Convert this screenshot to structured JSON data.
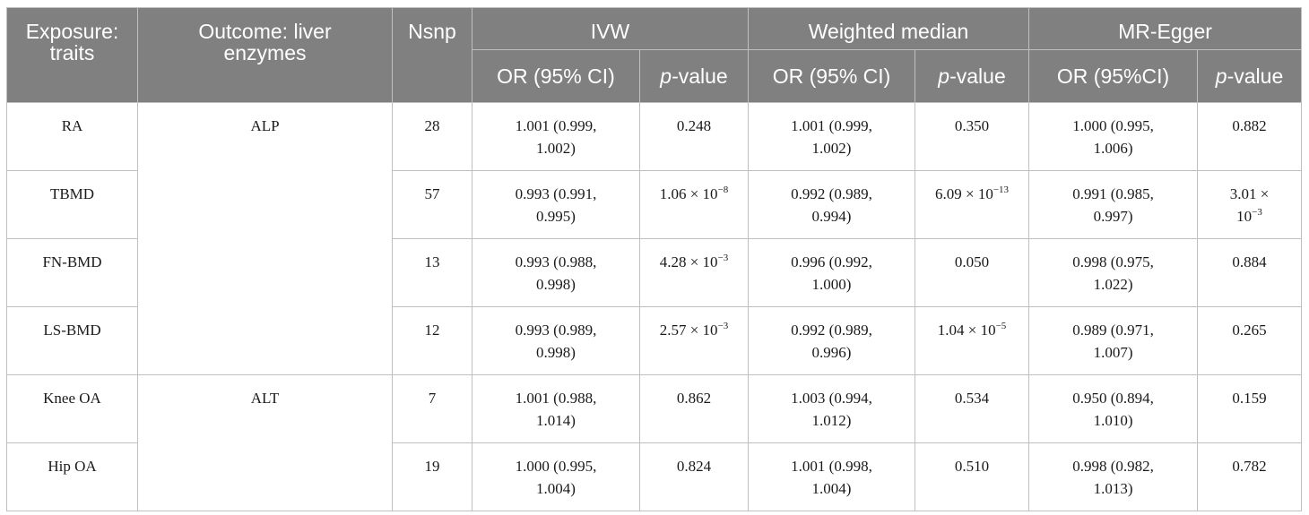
{
  "headers": {
    "exposure": "Exposure: traits",
    "outcome": "Outcome: liver enzymes",
    "nsnp": "Nsnp",
    "ivw": "IVW",
    "weighted_median": "Weighted median",
    "mr_egger": "MR-Egger",
    "or_ci": "OR (95% CI)",
    "or_ci_egger": "OR (95%CI)",
    "p_italic": "p",
    "p_suffix": "-value"
  },
  "outcomes": [
    "ALP",
    "ALT"
  ],
  "rows": [
    {
      "exposure": "RA",
      "nsnp": "28",
      "ivw_or": [
        "1.001 (0.999,",
        "1.002)"
      ],
      "ivw_p": {
        "m": "0.248",
        "e": ""
      },
      "wm_or": [
        "1.001 (0.999,",
        "1.002)"
      ],
      "wm_p": {
        "m": "0.350",
        "e": ""
      },
      "egger_or": [
        "1.000 (0.995,",
        "1.006)"
      ],
      "egger_p": {
        "m": "0.882",
        "e": ""
      }
    },
    {
      "exposure": "TBMD",
      "nsnp": "57",
      "ivw_or": [
        "0.993 (0.991,",
        "0.995)"
      ],
      "ivw_p": {
        "m": "1.06 × 10",
        "e": "−8"
      },
      "wm_or": [
        "0.992 (0.989,",
        "0.994)"
      ],
      "wm_p": {
        "m": "6.09 × 10",
        "e": "−13"
      },
      "egger_or": [
        "0.991 (0.985,",
        "0.997)"
      ],
      "egger_p": {
        "m": "3.01 ×",
        "m2": "10",
        "e": "−3"
      }
    },
    {
      "exposure": "FN-BMD",
      "nsnp": "13",
      "ivw_or": [
        "0.993 (0.988,",
        "0.998)"
      ],
      "ivw_p": {
        "m": "4.28 × 10",
        "e": "−3"
      },
      "wm_or": [
        "0.996 (0.992,",
        "1.000)"
      ],
      "wm_p": {
        "m": "0.050",
        "e": ""
      },
      "egger_or": [
        "0.998 (0.975,",
        "1.022)"
      ],
      "egger_p": {
        "m": "0.884",
        "e": ""
      }
    },
    {
      "exposure": "LS-BMD",
      "nsnp": "12",
      "ivw_or": [
        "0.993 (0.989,",
        "0.998)"
      ],
      "ivw_p": {
        "m": "2.57 × 10",
        "e": "−3"
      },
      "wm_or": [
        "0.992 (0.989,",
        "0.996)"
      ],
      "wm_p": {
        "m": "1.04 × 10",
        "e": "−5"
      },
      "egger_or": [
        "0.989 (0.971,",
        "1.007)"
      ],
      "egger_p": {
        "m": "0.265",
        "e": ""
      }
    },
    {
      "exposure": "Knee OA",
      "nsnp": "7",
      "ivw_or": [
        "1.001 (0.988,",
        "1.014)"
      ],
      "ivw_p": {
        "m": "0.862",
        "e": ""
      },
      "wm_or": [
        "1.003 (0.994,",
        "1.012)"
      ],
      "wm_p": {
        "m": "0.534",
        "e": ""
      },
      "egger_or": [
        "0.950 (0.894,",
        "1.010)"
      ],
      "egger_p": {
        "m": "0.159",
        "e": ""
      }
    },
    {
      "exposure": "Hip OA",
      "nsnp": "19",
      "ivw_or": [
        "1.000 (0.995,",
        "1.004)"
      ],
      "ivw_p": {
        "m": "0.824",
        "e": ""
      },
      "wm_or": [
        "1.001 (0.998,",
        "1.004)"
      ],
      "wm_p": {
        "m": "0.510",
        "e": ""
      },
      "egger_or": [
        "0.998 (0.982,",
        "1.013)"
      ],
      "egger_p": {
        "m": "0.782",
        "e": ""
      }
    }
  ],
  "colors": {
    "header_bg": "#808080",
    "header_text": "#ffffff",
    "border": "#bfbfbf"
  }
}
